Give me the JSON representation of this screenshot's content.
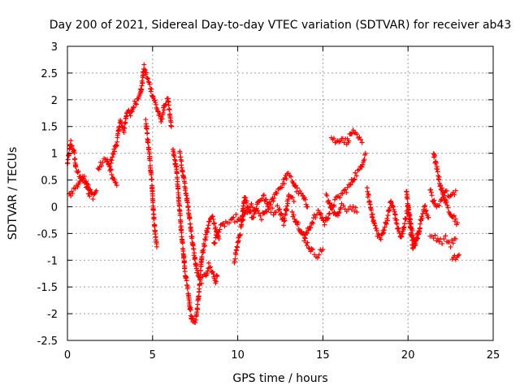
{
  "chart_data": {
    "type": "scatter",
    "title": "Day 200 of 2021, Sidereal Day-to-day VTEC variation (SDTVAR) for receiver ab43",
    "xlabel": "GPS time / hours",
    "ylabel": "SDTVAR / TECUs",
    "xlim": [
      0,
      25
    ],
    "ylim": [
      -2.5,
      3
    ],
    "grid": true,
    "x_ticks": [
      0,
      5,
      10,
      15,
      20,
      25
    ],
    "x_tick_labels": [
      "0",
      "5",
      "10",
      "15",
      "20",
      "25"
    ],
    "y_ticks": [
      -2.5,
      -2,
      -1.5,
      -1,
      -0.5,
      0,
      0.5,
      1,
      1.5,
      2,
      2.5,
      3
    ],
    "y_tick_labels": [
      "-2.5",
      "-2",
      "-1.5",
      "-1",
      "-0.5",
      "0",
      "0.5",
      "1",
      "1.5",
      "2",
      "2.5",
      "3"
    ],
    "marker": "+",
    "marker_color": "#ff0000",
    "series": [
      {
        "name": "SDTVAR",
        "tracks": [
          [
            [
              0.0,
              0.8
            ],
            [
              0.2,
              1.2
            ],
            [
              0.4,
              1.0
            ],
            [
              0.5,
              0.7
            ],
            [
              0.7,
              0.6
            ],
            [
              0.9,
              0.5
            ],
            [
              1.1,
              0.4
            ],
            [
              1.3,
              0.2
            ]
          ],
          [
            [
              0.1,
              0.2
            ],
            [
              0.3,
              0.3
            ],
            [
              0.6,
              0.4
            ],
            [
              0.9,
              0.6
            ],
            [
              1.1,
              0.5
            ],
            [
              1.3,
              0.3
            ],
            [
              1.5,
              0.2
            ],
            [
              1.7,
              0.3
            ]
          ],
          [
            [
              1.8,
              0.7
            ],
            [
              2.0,
              0.8
            ],
            [
              2.3,
              0.9
            ],
            [
              2.5,
              0.7
            ],
            [
              2.7,
              0.5
            ],
            [
              2.9,
              0.4
            ]
          ],
          [
            [
              2.5,
              0.8
            ],
            [
              2.7,
              1.0
            ],
            [
              2.9,
              1.2
            ],
            [
              3.1,
              1.6
            ],
            [
              3.3,
              1.4
            ],
            [
              3.5,
              1.8
            ],
            [
              3.7,
              1.7
            ],
            [
              3.9,
              1.9
            ],
            [
              4.1,
              2.0
            ],
            [
              4.3,
              2.2
            ]
          ],
          [
            [
              4.3,
              2.1
            ],
            [
              4.5,
              2.6
            ],
            [
              4.7,
              2.4
            ],
            [
              4.9,
              2.2
            ],
            [
              5.1,
              2.0
            ],
            [
              5.3,
              1.8
            ],
            [
              5.5,
              1.6
            ],
            [
              5.7,
              1.9
            ],
            [
              5.9,
              2.0
            ],
            [
              6.1,
              1.5
            ]
          ],
          [
            [
              4.6,
              1.6
            ],
            [
              4.8,
              1.0
            ],
            [
              4.95,
              0.5
            ],
            [
              5.05,
              -0.1
            ],
            [
              5.15,
              -0.5
            ],
            [
              5.25,
              -0.75
            ]
          ],
          [
            [
              6.2,
              1.1
            ],
            [
              6.4,
              0.7
            ],
            [
              6.5,
              0.3
            ],
            [
              6.6,
              -0.1
            ],
            [
              6.7,
              -0.5
            ],
            [
              6.8,
              -0.8
            ],
            [
              6.9,
              -1.2
            ],
            [
              7.0,
              -1.4
            ],
            [
              7.1,
              -1.6
            ],
            [
              7.2,
              -1.9
            ],
            [
              7.3,
              -2.1
            ],
            [
              7.4,
              -2.15
            ],
            [
              7.55,
              -2.1
            ],
            [
              7.7,
              -1.7
            ],
            [
              7.8,
              -1.3
            ],
            [
              7.9,
              -0.9
            ],
            [
              8.1,
              -0.6
            ],
            [
              8.3,
              -0.3
            ],
            [
              8.5,
              -0.2
            ],
            [
              8.7,
              -0.4
            ],
            [
              8.9,
              -0.6
            ]
          ],
          [
            [
              6.6,
              1.0
            ],
            [
              6.8,
              0.6
            ],
            [
              7.0,
              0.2
            ],
            [
              7.2,
              -0.3
            ],
            [
              7.4,
              -0.8
            ],
            [
              7.6,
              -1.2
            ],
            [
              7.8,
              -1.4
            ],
            [
              8.1,
              -1.3
            ],
            [
              8.3,
              -1.1
            ],
            [
              8.5,
              -1.2
            ],
            [
              8.7,
              -1.4
            ],
            [
              8.8,
              -1.3
            ]
          ],
          [
            [
              8.6,
              -0.7
            ],
            [
              8.8,
              -0.5
            ],
            [
              9.0,
              -0.4
            ],
            [
              9.3,
              -0.3
            ],
            [
              9.6,
              -0.3
            ],
            [
              9.9,
              -0.2
            ],
            [
              10.2,
              -0.3
            ],
            [
              10.5,
              -0.1
            ],
            [
              10.8,
              0.0
            ],
            [
              11.1,
              -0.1
            ],
            [
              11.4,
              -0.2
            ],
            [
              11.7,
              -0.05
            ],
            [
              12.0,
              0.1
            ],
            [
              12.3,
              0.3
            ],
            [
              12.6,
              0.4
            ],
            [
              12.9,
              0.6
            ],
            [
              13.2,
              0.5
            ],
            [
              13.5,
              0.3
            ],
            [
              13.8,
              0.2
            ],
            [
              14.1,
              0.0
            ]
          ],
          [
            [
              9.8,
              -1.0
            ],
            [
              10.0,
              -0.7
            ],
            [
              10.2,
              -0.4
            ],
            [
              10.4,
              0.2
            ],
            [
              10.6,
              0.0
            ],
            [
              10.9,
              -0.2
            ],
            [
              11.2,
              0.1
            ],
            [
              11.5,
              0.2
            ],
            [
              11.8,
              0.0
            ],
            [
              12.1,
              -0.1
            ],
            [
              12.4,
              0.0
            ],
            [
              12.7,
              -0.3
            ],
            [
              13.0,
              0.2
            ],
            [
              13.3,
              0.1
            ]
          ],
          [
            [
              13.2,
              -0.1
            ],
            [
              13.5,
              -0.3
            ],
            [
              13.8,
              -0.5
            ],
            [
              14.1,
              -0.7
            ],
            [
              14.4,
              -0.85
            ],
            [
              14.7,
              -0.9
            ],
            [
              15.0,
              -0.8
            ]
          ],
          [
            [
              13.9,
              -0.6
            ],
            [
              14.2,
              -0.4
            ],
            [
              14.5,
              -0.2
            ],
            [
              14.8,
              -0.1
            ],
            [
              15.1,
              -0.3
            ],
            [
              15.4,
              -0.1
            ],
            [
              15.7,
              0.1
            ],
            [
              16.0,
              0.2
            ],
            [
              16.3,
              0.3
            ],
            [
              16.6,
              0.4
            ],
            [
              16.9,
              0.6
            ],
            [
              17.2,
              0.7
            ],
            [
              17.5,
              1.0
            ]
          ],
          [
            [
              15.5,
              1.3
            ],
            [
              15.8,
              1.2
            ],
            [
              16.1,
              1.3
            ],
            [
              16.4,
              1.2
            ],
            [
              16.7,
              1.4
            ],
            [
              17.0,
              1.3
            ],
            [
              17.3,
              1.2
            ]
          ],
          [
            [
              15.2,
              0.2
            ],
            [
              15.5,
              0.0
            ],
            [
              15.8,
              -0.2
            ],
            [
              16.1,
              0.0
            ],
            [
              16.4,
              -0.05
            ],
            [
              16.7,
              0.0
            ],
            [
              17.0,
              -0.1
            ]
          ],
          [
            [
              17.6,
              0.3
            ],
            [
              17.8,
              0.0
            ],
            [
              18.0,
              -0.3
            ],
            [
              18.2,
              -0.5
            ],
            [
              18.4,
              -0.6
            ],
            [
              18.6,
              -0.4
            ],
            [
              18.8,
              -0.2
            ],
            [
              19.0,
              0.1
            ],
            [
              19.2,
              -0.1
            ],
            [
              19.4,
              -0.4
            ],
            [
              19.6,
              -0.6
            ],
            [
              19.8,
              -0.3
            ],
            [
              20.0,
              0.0
            ],
            [
              20.2,
              -0.4
            ],
            [
              20.4,
              -0.7
            ],
            [
              20.6,
              -0.5
            ],
            [
              20.8,
              -0.2
            ],
            [
              21.0,
              0.0
            ],
            [
              21.2,
              -0.2
            ]
          ],
          [
            [
              19.9,
              0.3
            ],
            [
              20.1,
              -0.3
            ],
            [
              20.3,
              -0.8
            ],
            [
              20.5,
              -0.6
            ],
            [
              20.7,
              -0.4
            ]
          ],
          [
            [
              21.5,
              1.0
            ],
            [
              21.7,
              0.7
            ],
            [
              21.9,
              0.4
            ],
            [
              22.1,
              0.2
            ],
            [
              22.3,
              0.0
            ],
            [
              22.5,
              -0.1
            ],
            [
              22.7,
              -0.2
            ],
            [
              22.9,
              -0.3
            ]
          ],
          [
            [
              21.3,
              0.3
            ],
            [
              21.6,
              0.0
            ],
            [
              21.9,
              0.1
            ],
            [
              22.2,
              0.3
            ],
            [
              22.5,
              0.2
            ],
            [
              22.8,
              0.3
            ]
          ],
          [
            [
              21.3,
              -0.6
            ],
            [
              21.6,
              -0.55
            ],
            [
              21.9,
              -0.65
            ],
            [
              22.2,
              -0.6
            ],
            [
              22.5,
              -0.7
            ],
            [
              22.8,
              -0.6
            ]
          ],
          [
            [
              22.6,
              -1.0
            ],
            [
              22.8,
              -0.95
            ],
            [
              23.0,
              -0.9
            ]
          ]
        ]
      }
    ]
  }
}
